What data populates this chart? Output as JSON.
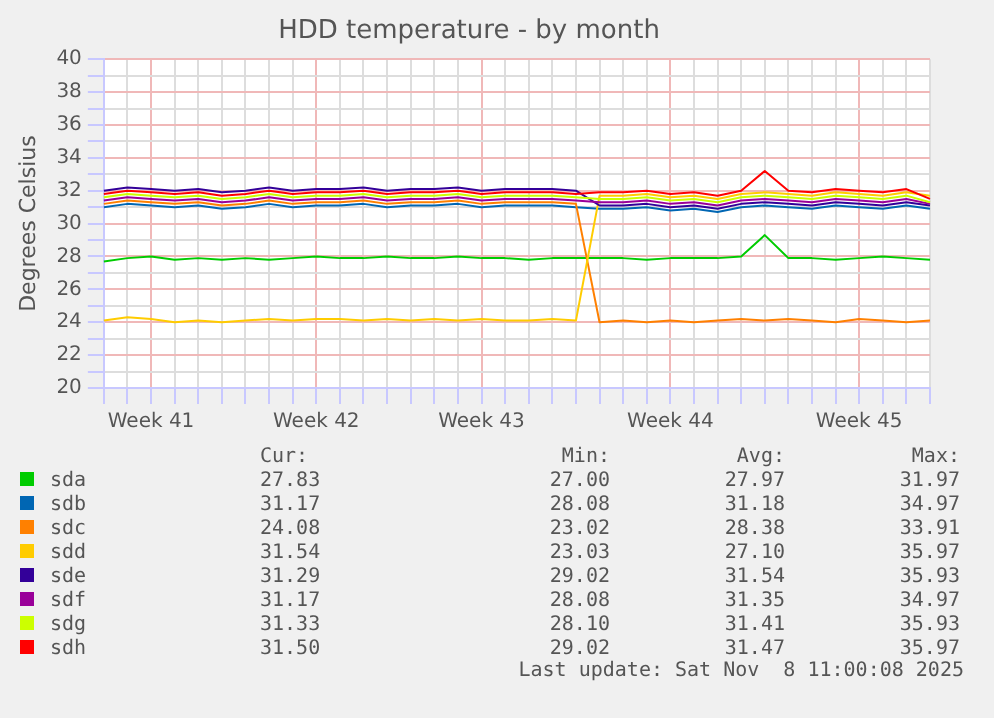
{
  "chart_data": {
    "type": "line",
    "title": "HDD temperature - by month",
    "ylabel": "Degrees Celsius",
    "categories": [
      null,
      null,
      "Week 41",
      null,
      null,
      null,
      null,
      null,
      null,
      "Week 42",
      null,
      null,
      null,
      null,
      null,
      null,
      "Week 43",
      null,
      null,
      null,
      null,
      null,
      null,
      null,
      "Week 44",
      null,
      null,
      null,
      null,
      null,
      null,
      null,
      "Week 45",
      null,
      null,
      null
    ],
    "ylim": [
      20,
      40
    ],
    "yticks": [
      20,
      {
        "value": 21,
        "label": null
      },
      22,
      {
        "value": 23,
        "label": null
      },
      24,
      {
        "value": 25,
        "label": null
      },
      26,
      {
        "value": 27,
        "label": null
      },
      28,
      {
        "value": 29,
        "label": null
      },
      30,
      {
        "value": 31,
        "label": null
      },
      32,
      {
        "value": 33,
        "label": null
      },
      34,
      {
        "value": 35,
        "label": null
      },
      36,
      {
        "value": 37,
        "label": null
      },
      38,
      {
        "value": 39,
        "label": null
      },
      40
    ],
    "grid": true,
    "legend": "bottom",
    "marker": "none",
    "line_style": "solid",
    "series": [
      {
        "name": "sda",
        "color": "#00cc00",
        "values": [
          27.7,
          27.9,
          28.0,
          27.8,
          27.9,
          27.8,
          27.9,
          27.8,
          27.9,
          28.0,
          27.9,
          27.9,
          28.0,
          27.9,
          27.9,
          28.0,
          27.9,
          27.9,
          27.8,
          27.9,
          27.9,
          27.9,
          27.9,
          27.8,
          27.9,
          27.9,
          27.9,
          28.0,
          29.3,
          27.9,
          27.9,
          27.8,
          27.9,
          28.0,
          27.9,
          27.8
        ]
      },
      {
        "name": "sdb",
        "color": "#0066b3",
        "values": [
          31.0,
          31.2,
          31.1,
          31.0,
          31.1,
          30.9,
          31.0,
          31.2,
          31.0,
          31.1,
          31.1,
          31.2,
          31.0,
          31.1,
          31.1,
          31.2,
          31.0,
          31.1,
          31.1,
          31.1,
          31.0,
          30.9,
          30.9,
          31.0,
          30.8,
          30.9,
          30.7,
          31.0,
          31.1,
          31.0,
          30.9,
          31.1,
          31.0,
          30.9,
          31.1,
          30.9
        ]
      },
      {
        "name": "sdc",
        "color": "#ff8000",
        "values": [
          31.2,
          31.4,
          31.3,
          31.2,
          31.3,
          31.1,
          31.2,
          31.4,
          31.2,
          31.3,
          31.3,
          31.4,
          31.2,
          31.3,
          31.3,
          31.4,
          31.2,
          31.3,
          31.3,
          31.3,
          31.2,
          24.0,
          24.1,
          24.0,
          24.1,
          24.0,
          24.1,
          24.2,
          24.1,
          24.2,
          24.1,
          24.0,
          24.2,
          24.1,
          24.0,
          24.1
        ]
      },
      {
        "name": "sdd",
        "color": "#ffcc00",
        "values": [
          24.1,
          24.3,
          24.2,
          24.0,
          24.1,
          24.0,
          24.1,
          24.2,
          24.1,
          24.2,
          24.2,
          24.1,
          24.2,
          24.1,
          24.2,
          24.1,
          24.2,
          24.1,
          24.1,
          24.2,
          24.1,
          31.7,
          31.7,
          31.8,
          31.6,
          31.7,
          31.5,
          31.8,
          31.9,
          31.8,
          31.7,
          31.9,
          31.8,
          31.7,
          31.9,
          31.7
        ]
      },
      {
        "name": "sde",
        "color": "#330099",
        "values": [
          32.0,
          32.2,
          32.1,
          32.0,
          32.1,
          31.9,
          32.0,
          32.2,
          32.0,
          32.1,
          32.1,
          32.2,
          32.0,
          32.1,
          32.1,
          32.2,
          32.0,
          32.1,
          32.1,
          32.1,
          32.0,
          31.1,
          31.1,
          31.2,
          31.0,
          31.1,
          30.9,
          31.2,
          31.3,
          31.2,
          31.1,
          31.3,
          31.2,
          31.1,
          31.3,
          31.1
        ]
      },
      {
        "name": "sdf",
        "color": "#990099",
        "values": [
          31.4,
          31.6,
          31.5,
          31.4,
          31.5,
          31.3,
          31.4,
          31.6,
          31.4,
          31.5,
          31.5,
          31.6,
          31.4,
          31.5,
          31.5,
          31.6,
          31.4,
          31.5,
          31.5,
          31.5,
          31.4,
          31.3,
          31.3,
          31.4,
          31.2,
          31.3,
          31.1,
          31.4,
          31.5,
          31.4,
          31.3,
          31.5,
          31.4,
          31.3,
          31.5,
          31.2
        ]
      },
      {
        "name": "sdg",
        "color": "#ccff00",
        "values": [
          31.6,
          31.8,
          31.7,
          31.6,
          31.7,
          31.5,
          31.6,
          31.8,
          31.6,
          31.7,
          31.7,
          31.8,
          31.6,
          31.7,
          31.7,
          31.8,
          31.6,
          31.7,
          31.7,
          31.7,
          31.6,
          31.5,
          31.5,
          31.6,
          31.4,
          31.5,
          31.3,
          31.6,
          31.7,
          31.6,
          31.5,
          31.7,
          31.6,
          31.5,
          31.7,
          31.3
        ]
      },
      {
        "name": "sdh",
        "color": "#ff0000",
        "values": [
          31.8,
          32.0,
          31.9,
          31.8,
          31.9,
          31.7,
          31.8,
          32.0,
          31.8,
          31.9,
          31.9,
          32.0,
          31.8,
          31.9,
          31.9,
          32.0,
          31.8,
          31.9,
          31.9,
          31.9,
          31.8,
          31.9,
          31.9,
          32.0,
          31.8,
          31.9,
          31.7,
          32.0,
          33.2,
          32.0,
          31.9,
          32.1,
          32.0,
          31.9,
          32.1,
          31.5
        ]
      }
    ],
    "annotations": [
      "Cur:",
      "Min:",
      "Avg:",
      "Max:",
      "27.83",
      "27.00",
      "27.97",
      "31.97",
      "31.17",
      "28.08",
      "31.18",
      "34.97",
      "24.08",
      "23.02",
      "28.38",
      "33.91",
      "31.54",
      "23.03",
      "27.10",
      "35.97",
      "31.29",
      "29.02",
      "31.54",
      "35.93",
      "31.17",
      "28.08",
      "31.35",
      "34.97",
      "31.33",
      "28.10",
      "31.41",
      "35.93",
      "31.50",
      "29.02",
      "31.47",
      "35.97",
      "Last update: Sat Nov  8 11:00:08 2025"
    ]
  }
}
